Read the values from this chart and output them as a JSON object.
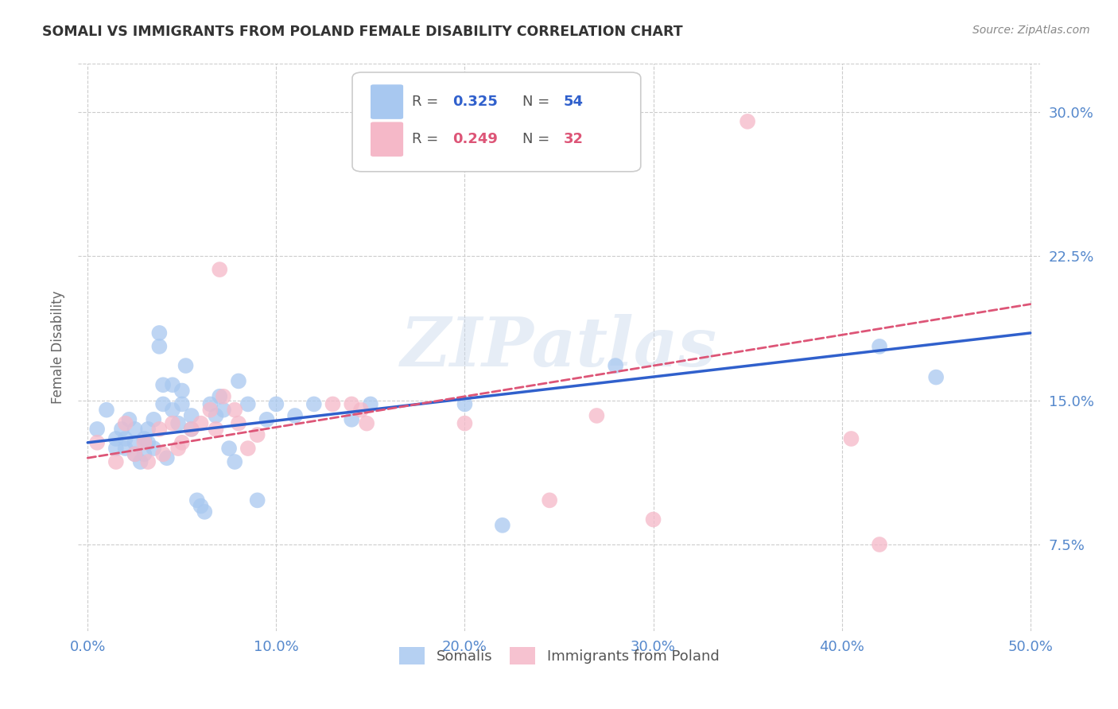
{
  "title": "SOMALI VS IMMIGRANTS FROM POLAND FEMALE DISABILITY CORRELATION CHART",
  "source": "Source: ZipAtlas.com",
  "ylabel": "Female Disability",
  "xlabel_ticks": [
    "0.0%",
    "10.0%",
    "20.0%",
    "30.0%",
    "40.0%",
    "50.0%"
  ],
  "xlabel_vals": [
    0.0,
    0.1,
    0.2,
    0.3,
    0.4,
    0.5
  ],
  "ylabel_ticks": [
    "7.5%",
    "15.0%",
    "22.5%",
    "30.0%"
  ],
  "ylabel_vals": [
    0.075,
    0.15,
    0.225,
    0.3
  ],
  "xlim": [
    -0.005,
    0.505
  ],
  "ylim": [
    0.03,
    0.325
  ],
  "somali_R": 0.325,
  "somali_N": 54,
  "poland_R": 0.249,
  "poland_N": 32,
  "somali_color": "#A8C8F0",
  "poland_color": "#F5B8C8",
  "somali_line_color": "#3060CC",
  "poland_line_color": "#DD5577",
  "legend_label_1": "Somalis",
  "legend_label_2": "Immigrants from Poland",
  "watermark": "ZIPatlas",
  "somali_x": [
    0.005,
    0.01,
    0.015,
    0.015,
    0.018,
    0.02,
    0.02,
    0.022,
    0.025,
    0.025,
    0.025,
    0.028,
    0.03,
    0.03,
    0.032,
    0.032,
    0.035,
    0.035,
    0.038,
    0.038,
    0.04,
    0.04,
    0.042,
    0.045,
    0.045,
    0.048,
    0.05,
    0.05,
    0.052,
    0.055,
    0.055,
    0.058,
    0.06,
    0.062,
    0.065,
    0.068,
    0.07,
    0.072,
    0.075,
    0.078,
    0.08,
    0.085,
    0.09,
    0.095,
    0.1,
    0.11,
    0.12,
    0.14,
    0.15,
    0.2,
    0.22,
    0.28,
    0.42,
    0.45
  ],
  "somali_y": [
    0.135,
    0.145,
    0.13,
    0.125,
    0.135,
    0.13,
    0.125,
    0.14,
    0.135,
    0.128,
    0.122,
    0.118,
    0.13,
    0.122,
    0.135,
    0.128,
    0.14,
    0.125,
    0.185,
    0.178,
    0.158,
    0.148,
    0.12,
    0.158,
    0.145,
    0.138,
    0.155,
    0.148,
    0.168,
    0.142,
    0.135,
    0.098,
    0.095,
    0.092,
    0.148,
    0.142,
    0.152,
    0.145,
    0.125,
    0.118,
    0.16,
    0.148,
    0.098,
    0.14,
    0.148,
    0.142,
    0.148,
    0.14,
    0.148,
    0.148,
    0.085,
    0.168,
    0.178,
    0.162
  ],
  "poland_x": [
    0.005,
    0.015,
    0.02,
    0.025,
    0.03,
    0.032,
    0.038,
    0.04,
    0.045,
    0.048,
    0.05,
    0.055,
    0.06,
    0.065,
    0.068,
    0.07,
    0.072,
    0.078,
    0.08,
    0.085,
    0.09,
    0.13,
    0.14,
    0.145,
    0.148,
    0.2,
    0.245,
    0.27,
    0.3,
    0.35,
    0.405,
    0.42
  ],
  "poland_y": [
    0.128,
    0.118,
    0.138,
    0.122,
    0.128,
    0.118,
    0.135,
    0.122,
    0.138,
    0.125,
    0.128,
    0.135,
    0.138,
    0.145,
    0.135,
    0.218,
    0.152,
    0.145,
    0.138,
    0.125,
    0.132,
    0.148,
    0.148,
    0.145,
    0.138,
    0.138,
    0.098,
    0.142,
    0.088,
    0.295,
    0.13,
    0.075
  ],
  "background_color": "#FFFFFF",
  "grid_color": "#CCCCCC",
  "title_color": "#333333",
  "tick_color": "#5588CC"
}
